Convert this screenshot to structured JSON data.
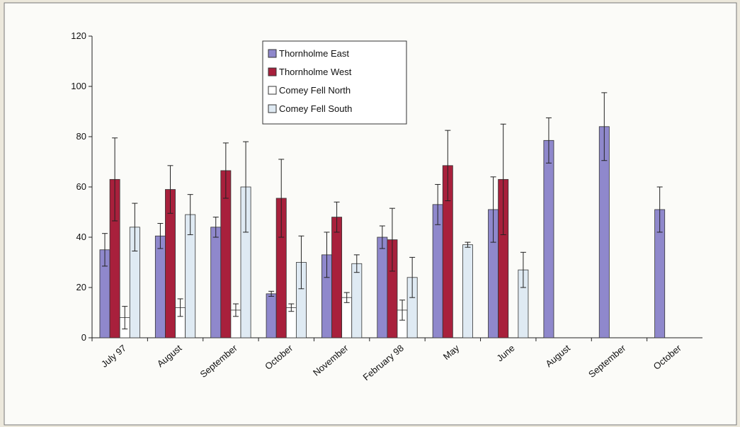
{
  "chart_data": {
    "type": "bar",
    "categories": [
      "July 97",
      "August",
      "September",
      "October",
      "November",
      "February 98",
      "May",
      "June",
      "August",
      "September",
      "October"
    ],
    "series": [
      {
        "name": "Thornholme East",
        "color": "#8f88cc",
        "values": [
          35,
          40.5,
          44,
          17.5,
          33,
          40,
          53,
          51,
          78.5,
          84,
          51
        ],
        "errors": [
          6.5,
          5,
          4,
          1,
          9,
          4.5,
          8,
          13,
          9,
          13.5,
          9
        ]
      },
      {
        "name": "Thornholme West",
        "color": "#a8203c",
        "values": [
          63,
          59,
          66.5,
          55.5,
          48,
          39,
          68.5,
          63,
          0,
          0,
          0
        ],
        "errors": [
          16.5,
          9.5,
          11,
          15.5,
          6,
          12.5,
          14,
          22,
          null,
          null,
          null
        ]
      },
      {
        "name": "Comey Fell North",
        "color": "#ffffff",
        "values": [
          8,
          12,
          11,
          12,
          16,
          11,
          null,
          null,
          0,
          0,
          0
        ],
        "errors": [
          4.5,
          3.5,
          2.5,
          1.5,
          2,
          4,
          null,
          null,
          null,
          null,
          null
        ]
      },
      {
        "name": "Comey Fell South",
        "color": "#dfeaf3",
        "values": [
          44,
          49,
          60,
          30,
          29.5,
          24,
          37,
          27,
          0,
          0,
          0
        ],
        "errors": [
          9.5,
          8,
          18,
          10.5,
          3.5,
          8,
          1,
          7,
          null,
          null,
          null
        ]
      }
    ],
    "ylim": [
      0,
      120
    ],
    "yticks": [
      0,
      20,
      40,
      60,
      80,
      100,
      120
    ],
    "grid": false,
    "legend": "top"
  }
}
